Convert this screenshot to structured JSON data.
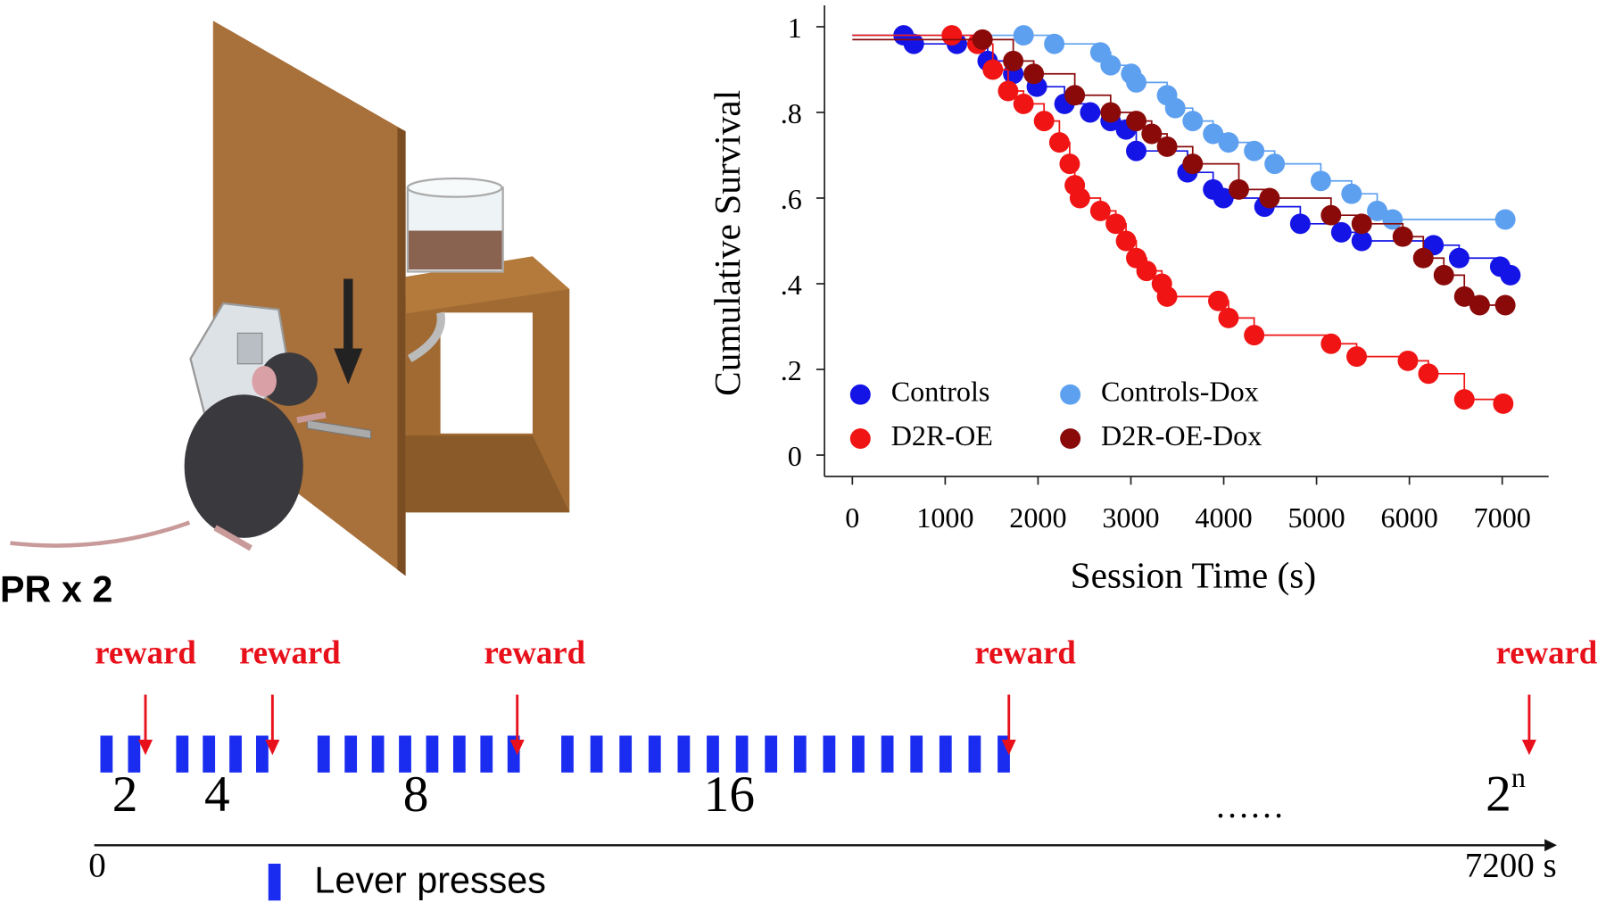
{
  "chart_data": {
    "type": "line",
    "step": true,
    "ylabel": "Cumulative  Survival",
    "xlabel": "Session Time (s)",
    "xlim": [
      -300,
      7500
    ],
    "ylim": [
      -0.05,
      1.05
    ],
    "xticks": [
      0,
      1000,
      2000,
      3000,
      4000,
      5000,
      6000,
      7000
    ],
    "yticks": [
      0,
      {
        "value": 0.2,
        "label": ".2"
      },
      {
        "value": 0.4,
        "label": ".4"
      },
      {
        "value": 0.6,
        "label": ".6"
      },
      {
        "value": 0.8,
        "label": ".8"
      },
      1
    ],
    "legend": "lower left",
    "series": [
      {
        "name": "Controls",
        "color": "#1414e6",
        "x": [
          552,
          662,
          1126,
          1457,
          1733,
          1987,
          2285,
          2562,
          2782,
          2948,
          3058,
          3610,
          3886,
          3997,
          4439,
          4825,
          5267,
          5487,
          6260,
          6536,
          6978,
          7088
        ],
        "values": [
          0.98,
          0.96,
          0.96,
          0.92,
          0.89,
          0.86,
          0.82,
          0.8,
          0.78,
          0.76,
          0.71,
          0.66,
          0.62,
          0.6,
          0.58,
          0.54,
          0.52,
          0.5,
          0.49,
          0.46,
          0.44,
          0.42
        ]
      },
      {
        "name": "Controls-Dox",
        "color": "#5ea0f0",
        "x": [
          1844,
          2175,
          2672,
          2782,
          3003,
          3058,
          3390,
          3478,
          3666,
          3886,
          4052,
          4328,
          4549,
          5046,
          5377,
          5653,
          5819,
          7033
        ],
        "values": [
          0.98,
          0.96,
          0.94,
          0.91,
          0.89,
          0.87,
          0.84,
          0.81,
          0.78,
          0.75,
          0.73,
          0.71,
          0.68,
          0.64,
          0.61,
          0.57,
          0.55,
          0.55
        ]
      },
      {
        "name": "D2R-OE",
        "color": "#f01414",
        "x": [
          1071,
          1347,
          1513,
          1678,
          1844,
          2065,
          2230,
          2341,
          2396,
          2451,
          2672,
          2838,
          2948,
          3058,
          3169,
          3334,
          3390,
          3942,
          4052,
          4328,
          5156,
          5432,
          5984,
          6205,
          6592,
          7011
        ],
        "values": [
          0.98,
          0.96,
          0.9,
          0.85,
          0.82,
          0.78,
          0.73,
          0.68,
          0.63,
          0.6,
          0.57,
          0.54,
          0.5,
          0.46,
          0.43,
          0.4,
          0.37,
          0.36,
          0.32,
          0.28,
          0.26,
          0.23,
          0.22,
          0.19,
          0.13,
          0.12
        ]
      },
      {
        "name": "D2R-OE-Dox",
        "color": "#8a0a0a",
        "x": [
          1402,
          1733,
          1954,
          2396,
          2782,
          3058,
          3224,
          3390,
          3666,
          4163,
          4494,
          5156,
          5487,
          5929,
          6150,
          6371,
          6592,
          6757,
          7033
        ],
        "values": [
          0.97,
          0.92,
          0.89,
          0.84,
          0.8,
          0.78,
          0.75,
          0.72,
          0.68,
          0.62,
          0.6,
          0.56,
          0.54,
          0.51,
          0.46,
          0.42,
          0.37,
          0.35,
          0.35
        ]
      }
    ]
  },
  "timeline": {
    "title": "PR x 2",
    "reward_labels": [
      "reward",
      "reward",
      "reward",
      "reward",
      "reward"
    ],
    "groups": [
      2,
      4,
      8,
      16
    ],
    "last_group": {
      "base": "2",
      "exponent": "n"
    },
    "ellipsis": "……",
    "start_label": "0",
    "end_label": "7200 s",
    "legend_label": "Lever presses"
  }
}
